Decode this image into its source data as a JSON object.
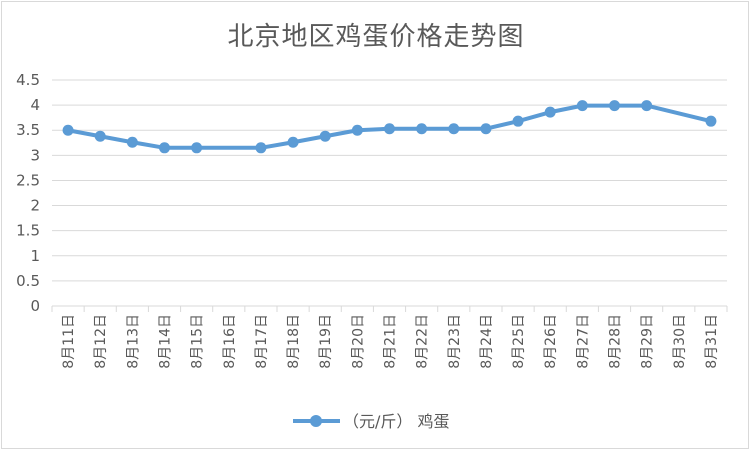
{
  "chart_data": {
    "type": "line",
    "title": "北京地区鸡蛋价格走势图",
    "categories": [
      "8月11日",
      "8月12日",
      "8月13日",
      "8月14日",
      "8月15日",
      "8月16日",
      "8月17日",
      "8月18日",
      "8月19日",
      "8月20日",
      "8月21日",
      "8月22日",
      "8月23日",
      "8月24日",
      "8月25日",
      "8月26日",
      "8月27日",
      "8月28日",
      "8月29日",
      "8月30日",
      "8月31日"
    ],
    "series": [
      {
        "name": "（元/斤） 鸡蛋",
        "values": [
          3.5,
          3.38,
          3.26,
          3.15,
          3.15,
          null,
          3.15,
          3.26,
          3.38,
          3.5,
          3.53,
          3.53,
          3.53,
          3.53,
          3.68,
          3.86,
          3.99,
          3.99,
          3.99,
          null,
          3.68
        ]
      }
    ],
    "yticks": [
      "0",
      "0.5",
      "1",
      "1.5",
      "2",
      "2.5",
      "3",
      "3.5",
      "4",
      "4.5"
    ],
    "ylim": [
      0,
      4.5
    ],
    "grid": true,
    "legend": "bottom",
    "line_color": "#5B9BD5",
    "grid_color": "#d9d9d9"
  }
}
